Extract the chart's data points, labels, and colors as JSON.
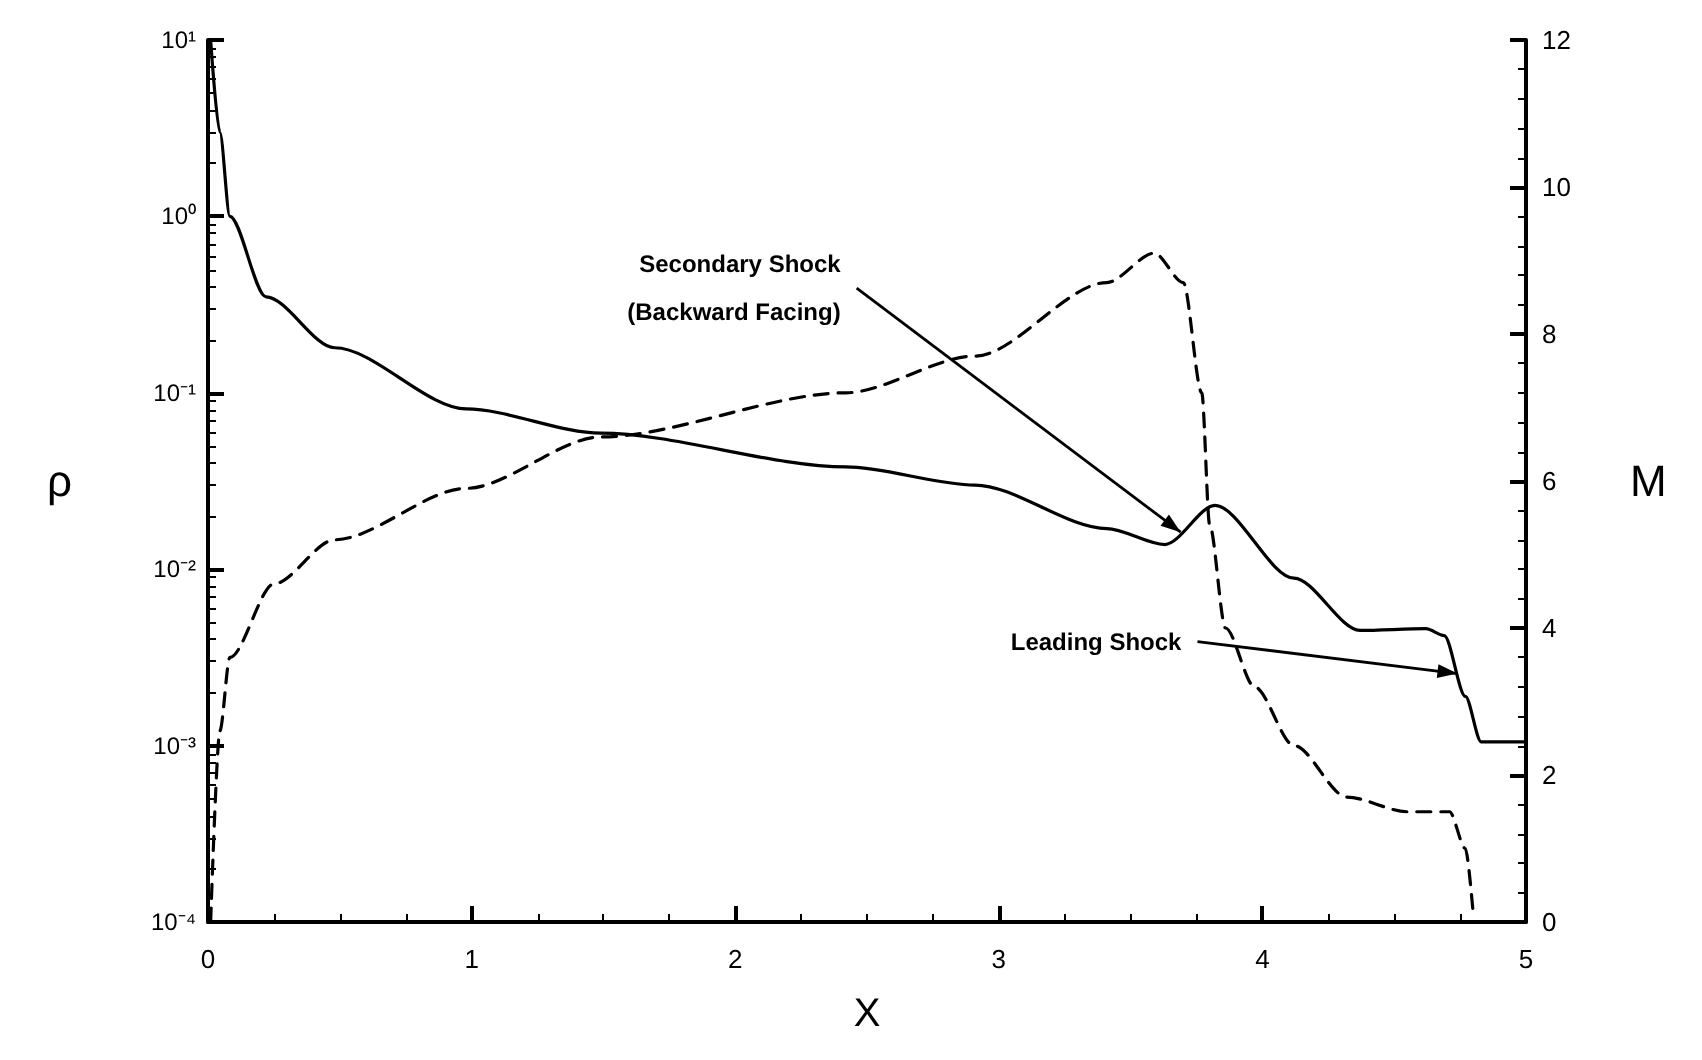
{
  "chart_data": {
    "type": "line",
    "xlabel": "X",
    "ylabel": "ρ",
    "y2label": "M",
    "log": "y",
    "xlim": [
      0,
      5
    ],
    "xticks": [
      0,
      1,
      2,
      3,
      4,
      5
    ],
    "ylim": [
      0.0001,
      10
    ],
    "yticks": [
      {
        "value": 0.0001,
        "label": "10⁻⁴"
      },
      {
        "value": 0.001,
        "label": "10⁻³"
      },
      {
        "value": 0.01,
        "label": "10⁻²"
      },
      {
        "value": 0.1,
        "label": "10⁻¹"
      },
      {
        "value": 1,
        "label": "10⁰"
      },
      {
        "value": 10,
        "label": "10¹"
      }
    ],
    "y2lim": [
      0,
      12
    ],
    "y2ticks": [
      0,
      2,
      4,
      6,
      8,
      10,
      12
    ],
    "grid": false,
    "marker": "none",
    "series": [
      {
        "color": "#000000",
        "line_style": "solid",
        "x": [
          0.01,
          0.045,
          0.083,
          0.22,
          0.48,
          0.98,
          1.49,
          2.42,
          2.91,
          3.41,
          3.63,
          3.82,
          4.12,
          4.37,
          4.62,
          4.69,
          4.77,
          4.83,
          5
        ],
        "values": [
          10,
          3,
          1,
          0.35,
          0.18,
          0.081,
          0.059,
          0.038,
          0.03,
          0.017,
          0.0138,
          0.023,
          0.0089,
          0.0045,
          0.0046,
          0.0042,
          0.0019,
          0.00105,
          0.00105
        ]
      },
      {
        "color": "#000000",
        "line_style": "dashed",
        "axis": "y2",
        "x": [
          0.01,
          0.045,
          0.083,
          0.25,
          0.48,
          0.98,
          1.49,
          2.42,
          2.91,
          3.41,
          3.59,
          3.7,
          3.77,
          3.8,
          3.86,
          3.97,
          4.12,
          4.32,
          4.55,
          4.71,
          4.77,
          4.8
        ],
        "values": [
          0,
          2.6,
          3.6,
          4.6,
          5.2,
          5.9,
          6.6,
          7.2,
          7.7,
          8.7,
          9.1,
          8.7,
          7.2,
          5.4,
          4,
          3.2,
          2.4,
          1.7,
          1.5,
          1.5,
          1,
          0.1
        ]
      }
    ],
    "annotations": [
      {
        "text": "Secondary Shock\n(Backward Facing)",
        "x": 3.69,
        "y": 0.0162
      },
      {
        "text": "Leading Shock",
        "x": 4.74,
        "y": 0.00256
      }
    ]
  }
}
